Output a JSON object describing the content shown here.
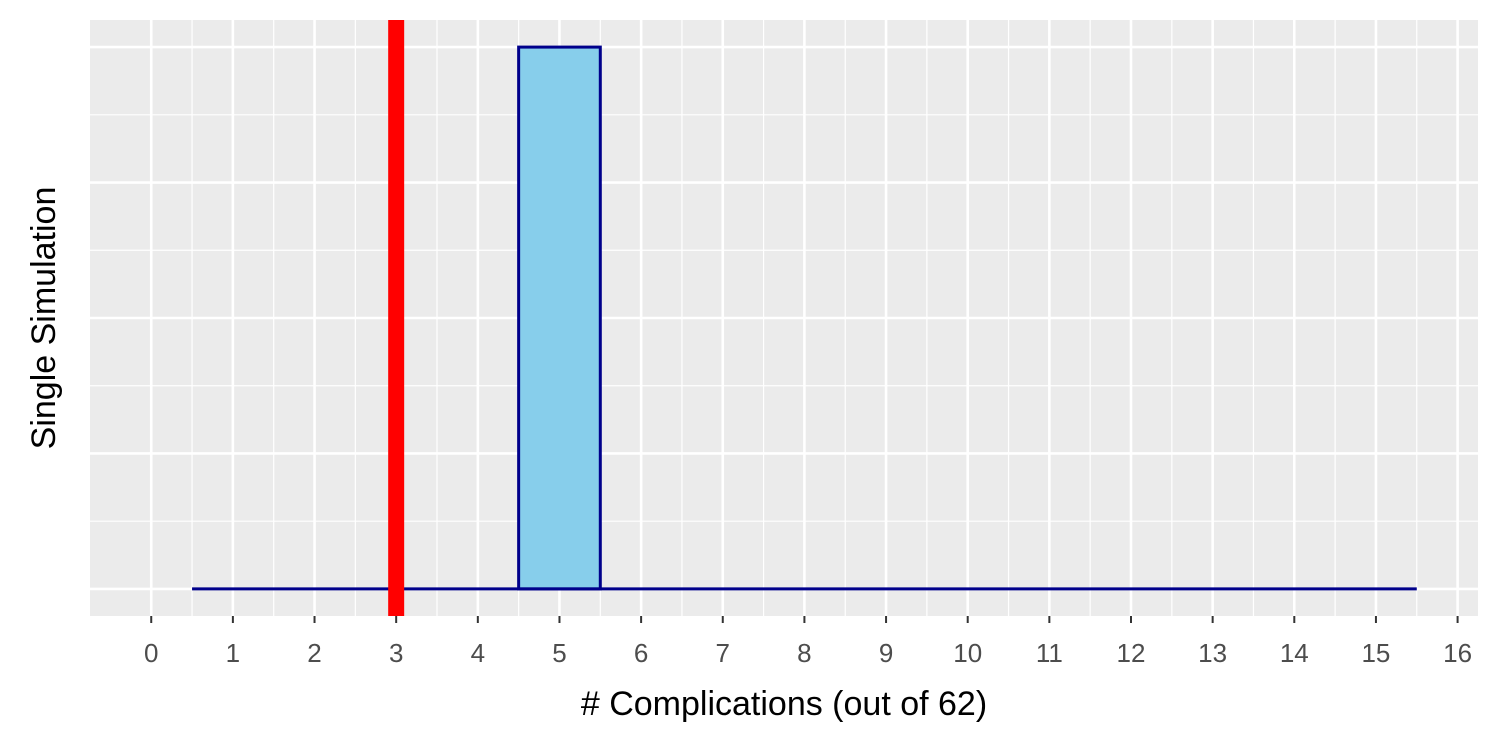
{
  "chart_data": {
    "type": "bar",
    "xlabel": "# Complications (out of 62)",
    "ylabel": "Single Simulation",
    "x_ticks": [
      0,
      1,
      2,
      3,
      4,
      5,
      6,
      7,
      8,
      9,
      10,
      11,
      12,
      13,
      14,
      15,
      16
    ],
    "xlim": [
      -0.75,
      16.25
    ],
    "ylim": [
      -0.05,
      1.05
    ],
    "bins": [
      {
        "x": 1,
        "count": 0
      },
      {
        "x": 2,
        "count": 0
      },
      {
        "x": 3,
        "count": 0
      },
      {
        "x": 4,
        "count": 0
      },
      {
        "x": 5,
        "count": 1
      },
      {
        "x": 6,
        "count": 0
      },
      {
        "x": 7,
        "count": 0
      },
      {
        "x": 8,
        "count": 0
      },
      {
        "x": 9,
        "count": 0
      },
      {
        "x": 10,
        "count": 0
      },
      {
        "x": 11,
        "count": 0
      },
      {
        "x": 12,
        "count": 0
      },
      {
        "x": 13,
        "count": 0
      },
      {
        "x": 14,
        "count": 0
      },
      {
        "x": 15,
        "count": 0
      }
    ],
    "bin_width": 1,
    "reference_line": {
      "x": 3,
      "color": "#ff0000"
    },
    "colors": {
      "panel": "#ebebeb",
      "grid": "#ffffff",
      "bar_fill": "#87ceeb",
      "bar_outline": "#00008b"
    },
    "y_tick_labels_shown": false,
    "legend": "none",
    "grid": true
  }
}
